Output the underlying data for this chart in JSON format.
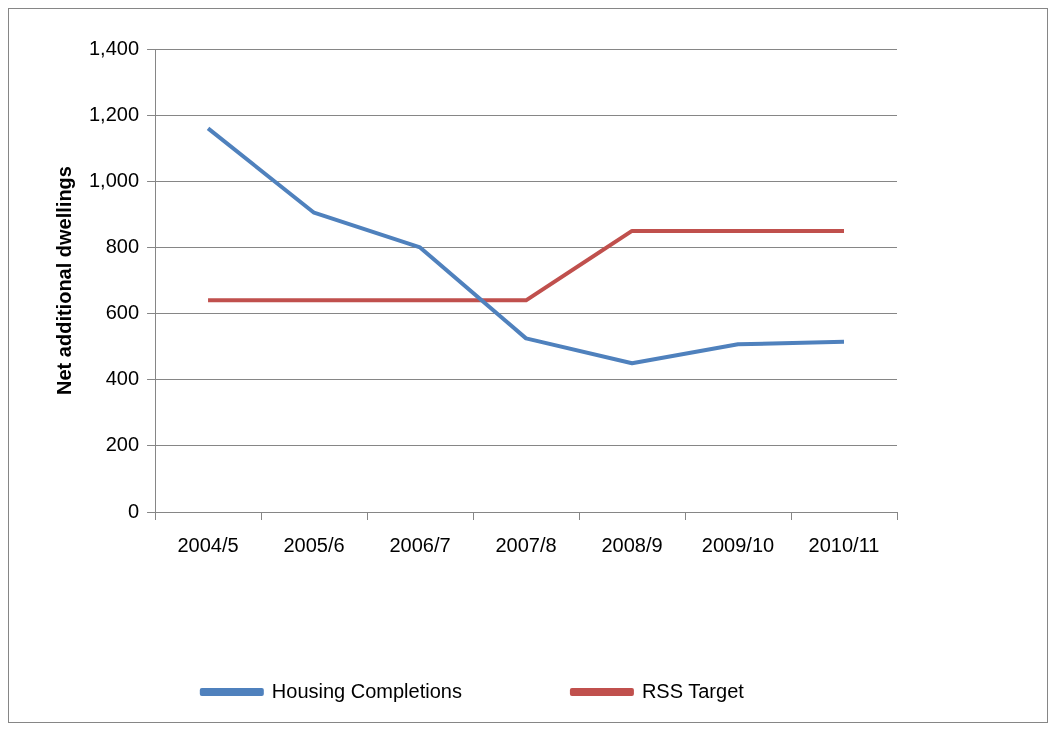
{
  "chart_data": {
    "type": "line",
    "ylabel": "Net additional dwellings",
    "categories": [
      "2004/5",
      "2005/6",
      "2006/7",
      "2007/8",
      "2008/9",
      "2009/10",
      "2010/11"
    ],
    "series": [
      {
        "name": "Housing Completions",
        "color": "#4f81bd",
        "values": [
          1160,
          905,
          800,
          525,
          450,
          507,
          515
        ]
      },
      {
        "name": "RSS Target",
        "color": "#c0504d",
        "values": [
          640,
          640,
          640,
          640,
          850,
          850,
          850
        ]
      }
    ],
    "ylim": [
      0,
      1400
    ],
    "yticks": [
      0,
      200,
      400,
      600,
      800,
      {
        "value": 1000,
        "label": "1,000"
      },
      {
        "value": 1200,
        "label": "1,200"
      },
      {
        "value": 1400,
        "label": "1,400"
      }
    ],
    "grid": "y",
    "legend": "bottom",
    "marker": "none",
    "line_style": "solid"
  }
}
